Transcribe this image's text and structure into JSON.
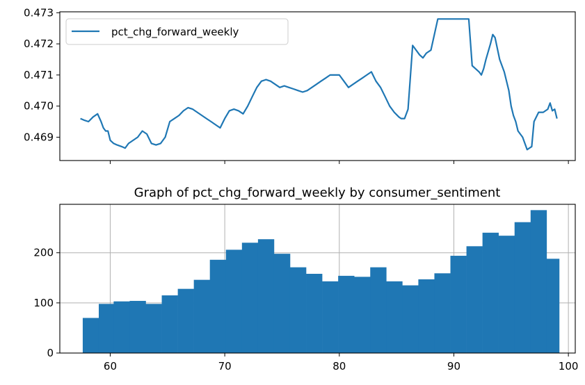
{
  "colors": {
    "series": "#1f77b4",
    "grid": "#b0b0b0",
    "axis": "#000000",
    "legend_border": "#cccccc"
  },
  "chart_data": [
    {
      "type": "line",
      "title": "",
      "xlabel": "",
      "ylabel": "",
      "x_ticks_labeled": false,
      "ylim": [
        0.46825,
        0.47303
      ],
      "y_ticks": [
        "0.469",
        "0.470",
        "0.471",
        "0.472",
        "0.473"
      ],
      "grid": false,
      "legend": {
        "placement": "top-left",
        "entries": [
          "pct_chg_forward_weekly"
        ]
      },
      "series": [
        {
          "name": "pct_chg_forward_weekly",
          "x": [
            57.4,
            57.7,
            58.1,
            58.5,
            58.9,
            59.2,
            59.4,
            59.6,
            59.8,
            60.0,
            60.3,
            60.6,
            61.0,
            61.3,
            61.6,
            62.0,
            62.4,
            62.8,
            63.2,
            63.6,
            64.0,
            64.4,
            64.8,
            65.2,
            65.6,
            66.0,
            66.4,
            66.8,
            67.2,
            67.6,
            68.0,
            68.4,
            68.8,
            69.2,
            69.6,
            70.0,
            70.4,
            70.8,
            71.2,
            71.6,
            72.0,
            72.4,
            72.8,
            73.2,
            73.6,
            74.0,
            74.4,
            74.8,
            75.2,
            75.6,
            76.0,
            76.4,
            76.8,
            77.2,
            77.6,
            78.0,
            78.4,
            78.8,
            79.2,
            79.6,
            80.0,
            80.4,
            80.8,
            81.2,
            81.6,
            82.0,
            82.4,
            82.8,
            83.2,
            83.6,
            84.0,
            84.4,
            84.8,
            85.2,
            85.4,
            85.7,
            86.0,
            86.4,
            86.8,
            87.0,
            87.3,
            87.6,
            88.0,
            88.6,
            89.2,
            89.8,
            90.2,
            90.6,
            90.9,
            91.1,
            91.3,
            91.6,
            91.9,
            92.2,
            92.4,
            92.6,
            92.8,
            93.2,
            93.4,
            93.6,
            94.0,
            94.4,
            94.8,
            95.0,
            95.2,
            95.4,
            95.6,
            96.0,
            96.4,
            96.8,
            97.0,
            97.4,
            97.8,
            98.2,
            98.4,
            98.6,
            98.8,
            99.0
          ],
          "values": [
            0.4696,
            0.46955,
            0.4695,
            0.46965,
            0.46975,
            0.4695,
            0.4693,
            0.4692,
            0.4692,
            0.4689,
            0.4688,
            0.46875,
            0.4687,
            0.46865,
            0.4688,
            0.4689,
            0.469,
            0.4692,
            0.4691,
            0.4688,
            0.46875,
            0.4688,
            0.469,
            0.4695,
            0.4696,
            0.4697,
            0.46985,
            0.46995,
            0.4699,
            0.4698,
            0.4697,
            0.4696,
            0.4695,
            0.4694,
            0.4693,
            0.4696,
            0.46985,
            0.4699,
            0.46985,
            0.46975,
            0.47,
            0.4703,
            0.4706,
            0.4708,
            0.47085,
            0.4708,
            0.4707,
            0.4706,
            0.47065,
            0.4706,
            0.47055,
            0.4705,
            0.47045,
            0.4705,
            0.4706,
            0.4707,
            0.4708,
            0.4709,
            0.471,
            0.471,
            0.471,
            0.4708,
            0.4706,
            0.4707,
            0.4708,
            0.4709,
            0.471,
            0.4711,
            0.4708,
            0.4706,
            0.4703,
            0.47,
            0.4698,
            0.46965,
            0.4696,
            0.4696,
            0.4699,
            0.47195,
            0.47175,
            0.47165,
            0.47155,
            0.4717,
            0.4718,
            0.4728,
            0.4728,
            0.4728,
            0.4728,
            0.4728,
            0.4728,
            0.4728,
            0.4728,
            0.4713,
            0.4712,
            0.4711,
            0.471,
            0.4712,
            0.4715,
            0.472,
            0.4723,
            0.4722,
            0.4715,
            0.4711,
            0.4705,
            0.47,
            0.4697,
            0.4695,
            0.4692,
            0.469,
            0.4686,
            0.4687,
            0.4695,
            0.4698,
            0.4698,
            0.4699,
            0.4701,
            0.46985,
            0.4699,
            0.4696
          ]
        }
      ]
    },
    {
      "type": "bar",
      "title": "Graph of pct_chg_forward_weekly by consumer_sentiment",
      "xlabel": "",
      "ylabel": "",
      "xlim": [
        55.6,
        100.6
      ],
      "ylim": [
        0,
        296.6
      ],
      "x_ticks": [
        60,
        70,
        80,
        90,
        100
      ],
      "y_ticks": [
        0,
        100,
        200
      ],
      "grid": true,
      "bin_edges": [
        57.6,
        59.0,
        60.3,
        61.7,
        63.1,
        64.5,
        65.9,
        67.3,
        68.7,
        70.1,
        71.5,
        72.9,
        74.3,
        75.7,
        77.1,
        78.5,
        79.9,
        81.3,
        82.7,
        84.1,
        85.5,
        86.9,
        88.3,
        89.7,
        91.1,
        92.5,
        93.9,
        95.3,
        96.7,
        98.1,
        99.2
      ],
      "values": [
        70,
        98,
        103,
        104,
        98,
        115,
        128,
        146,
        186,
        206,
        220,
        227,
        198,
        171,
        158,
        143,
        154,
        152,
        171,
        143,
        135,
        147,
        159,
        194,
        213,
        240,
        234,
        261,
        285,
        188
      ]
    }
  ]
}
